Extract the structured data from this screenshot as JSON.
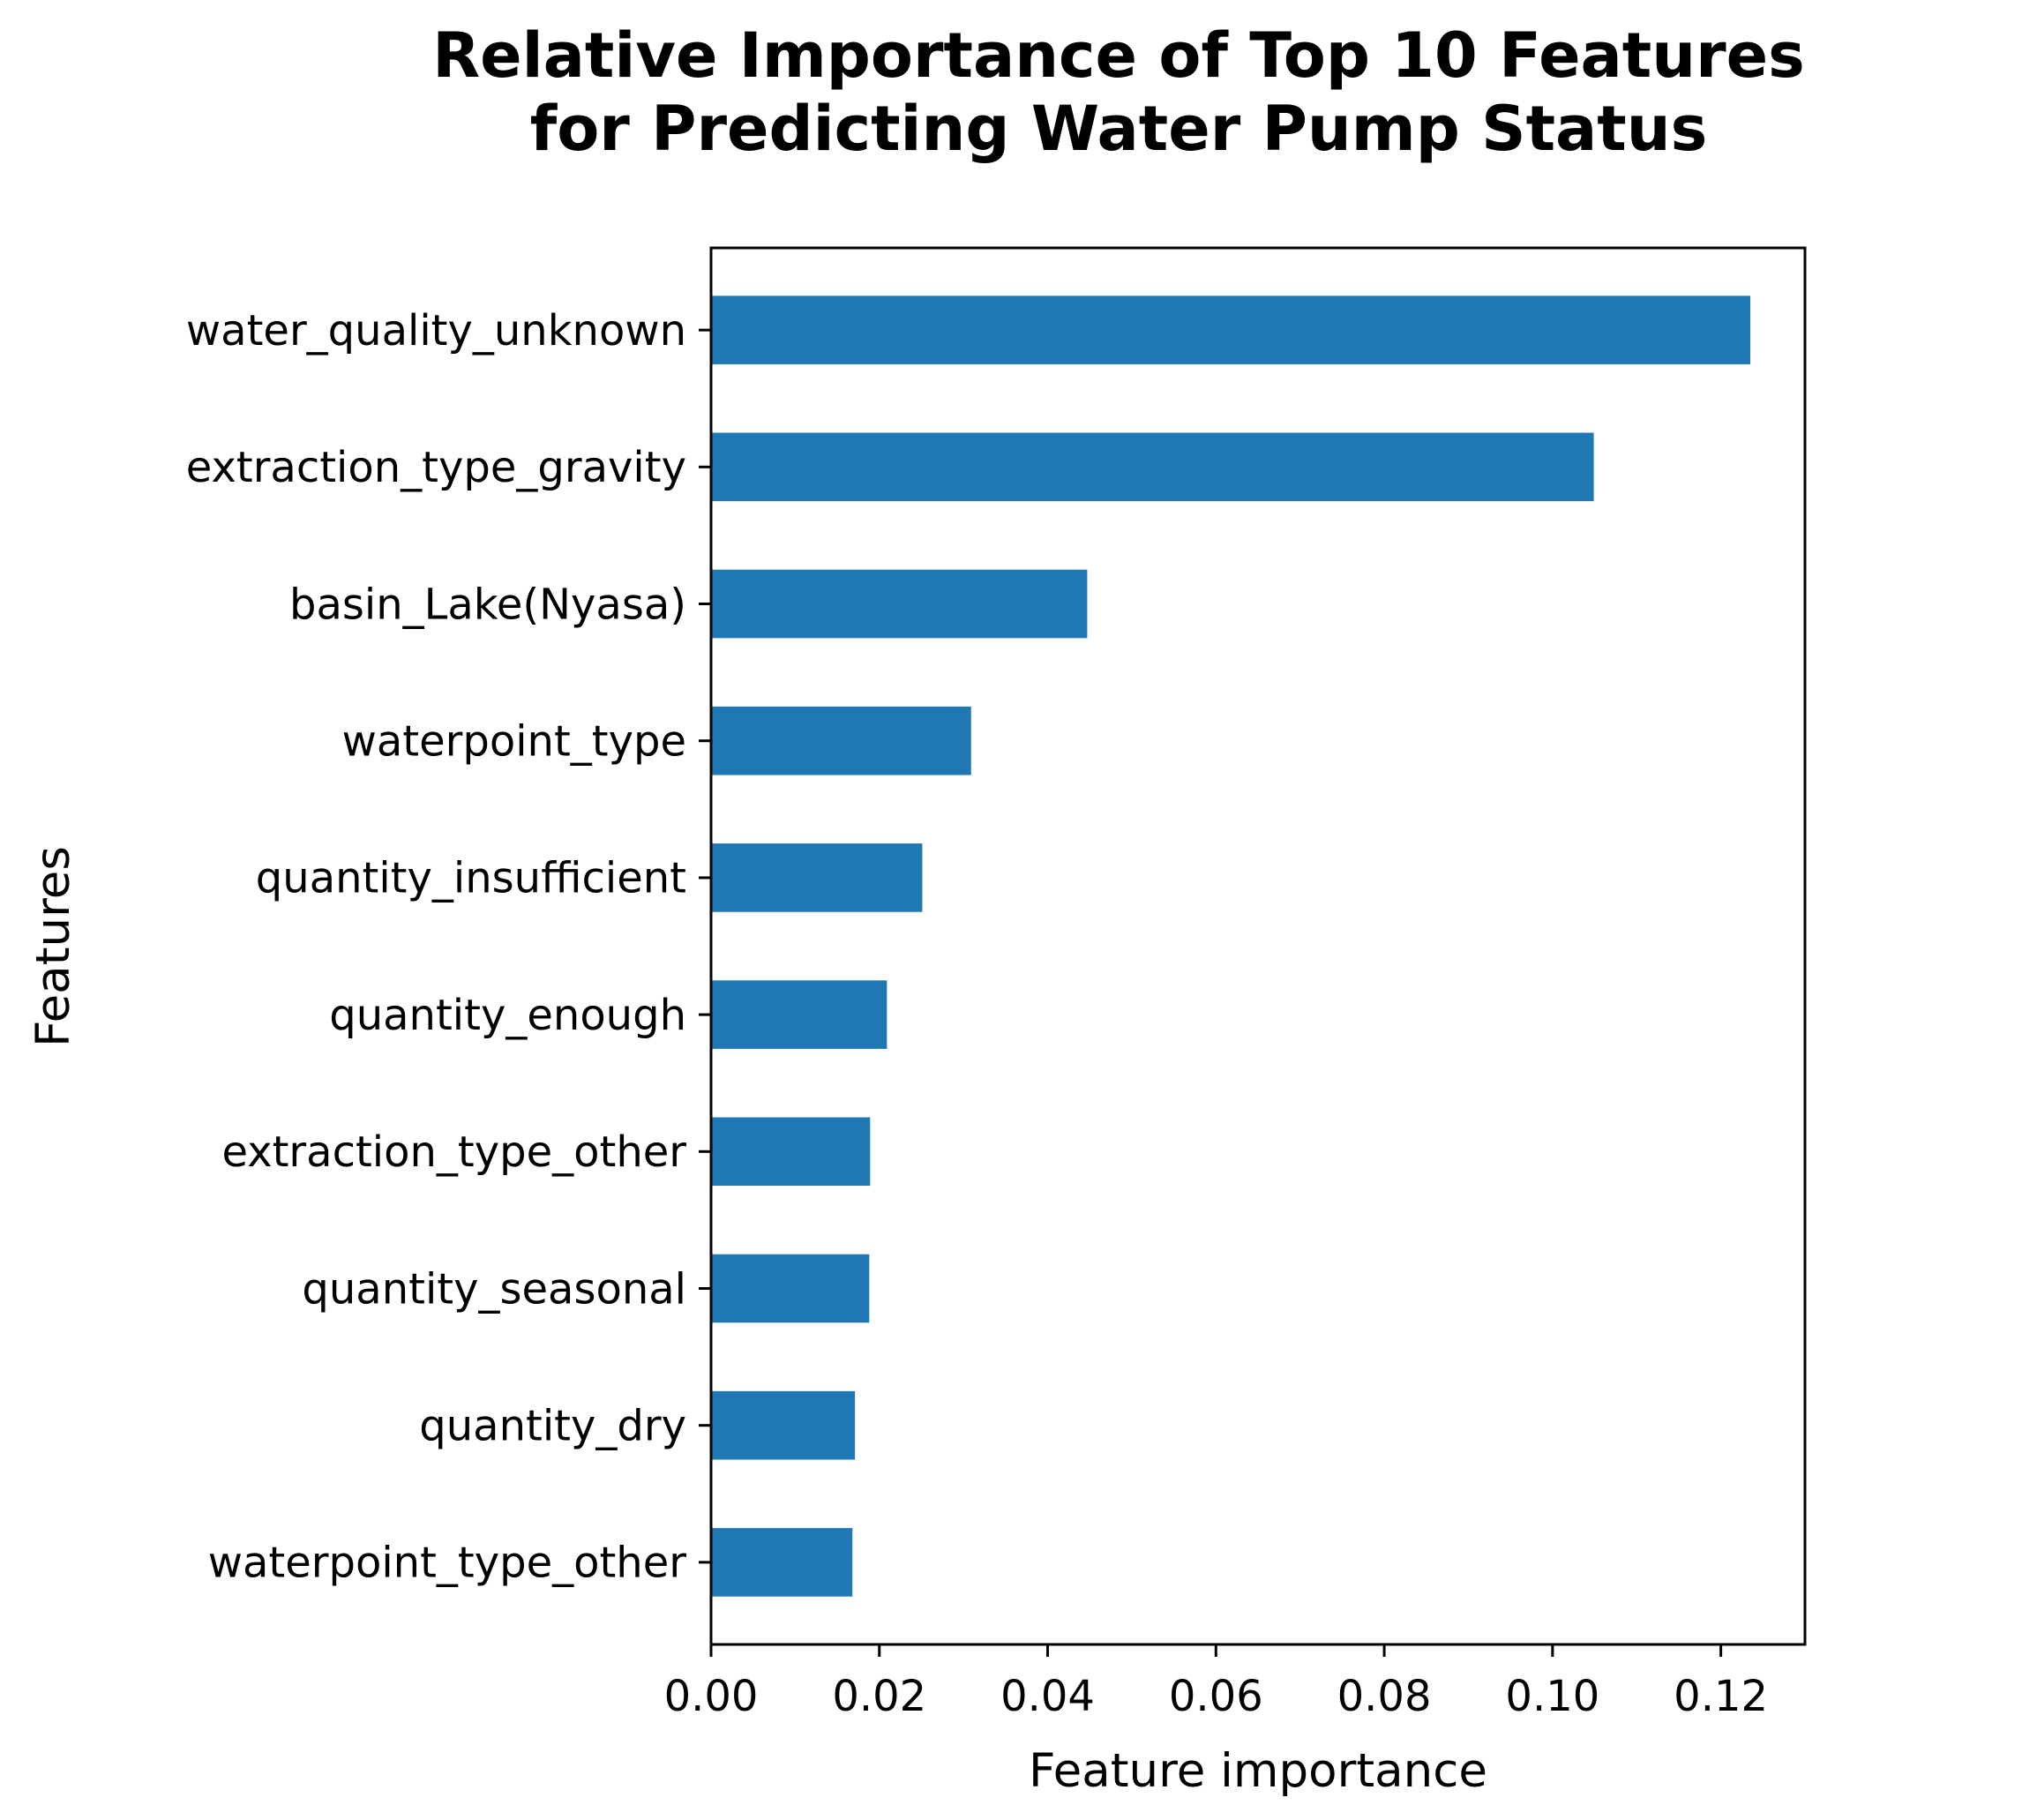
{
  "chart_data": {
    "type": "bar",
    "orientation": "horizontal",
    "title_lines": [
      "Relative Importance of Top 10 Features",
      "for Predicting Water Pump Status"
    ],
    "xlabel": "Feature importance",
    "ylabel": "Features",
    "xlim": [
      0,
      0.13
    ],
    "xticks": [
      0.0,
      0.02,
      0.04,
      0.06,
      0.08,
      0.1,
      0.12
    ],
    "xtick_labels": [
      "0.00",
      "0.02",
      "0.04",
      "0.06",
      "0.08",
      "0.10",
      "0.12"
    ],
    "categories": [
      "water_quality_unknown",
      "extraction_type_gravity",
      "basin_Lake(Nyasa)",
      "waterpoint_type",
      "quantity_insufficient",
      "quantity_enough",
      "extraction_type_other",
      "quantity_seasonal",
      "quantity_dry",
      "waterpoint_type_other"
    ],
    "values": [
      0.1235,
      0.1049,
      0.0447,
      0.0309,
      0.0251,
      0.0209,
      0.0189,
      0.0188,
      0.0171,
      0.0168
    ],
    "bar_color": "#1f77b4",
    "grid": false,
    "legend": "none"
  }
}
